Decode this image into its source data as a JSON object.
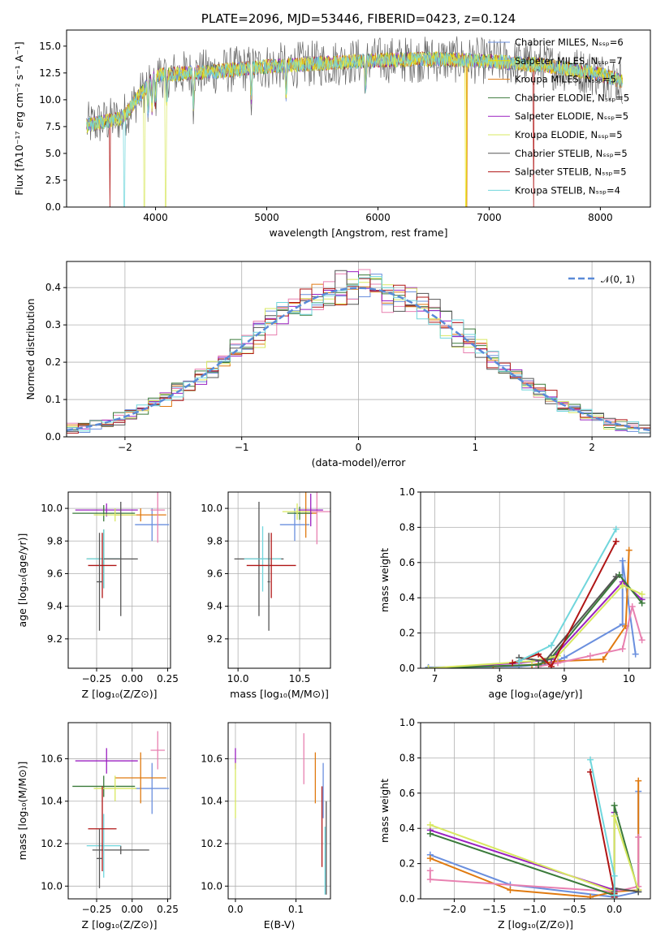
{
  "colors": {
    "Chabrier MILES": "#6a8fde",
    "Salpeter MILES": "#e8e000",
    "Kroupa MILES": "#e07a10",
    "Chabrier ELODIE": "#3a7a3a",
    "Salpeter ELODIE": "#9b20c0",
    "Kroupa ELODIE": "#d8e860",
    "Chabrier STELIB": "#555555",
    "Salpeter STELIB": "#b01515",
    "Kroupa STELIB": "#70d6dc",
    "extra_pink": "#e880b0",
    "normal_curve": "#5a8ad8"
  },
  "chart_data": [
    {
      "id": "spectrum",
      "type": "line",
      "title": "PLATE=2096, MJD=53446, FIBERID=0423, z=0.124",
      "xlabel": "wavelength [Angstrom, rest frame]",
      "ylabel": "Flux [fλ10⁻¹⁷ erg cm⁻² s⁻¹ A⁻¹]",
      "xlim": [
        3200,
        8450
      ],
      "ylim": [
        0,
        16.5
      ],
      "xticks": [
        4000,
        5000,
        6000,
        7000,
        8000
      ],
      "yticks": [
        0.0,
        2.5,
        5.0,
        7.5,
        10.0,
        12.5,
        15.0
      ],
      "legend_position": "right",
      "grid": false,
      "series": [
        {
          "name": "Chabrier MILES, Nₛₛₚ=6"
        },
        {
          "name": "Salpeter MILES, Nₛₛₚ=7"
        },
        {
          "name": "Kroupa MILES, Nₛₛₚ=5"
        },
        {
          "name": "Chabrier ELODIE, Nₛₛₚ=5"
        },
        {
          "name": "Salpeter ELODIE, Nₛₛₚ=5"
        },
        {
          "name": "Kroupa ELODIE, Nₛₛₚ=5"
        },
        {
          "name": "Chabrier STELIB, Nₛₛₚ=5"
        },
        {
          "name": "Salpeter STELIB, Nₛₛₚ=5"
        },
        {
          "name": "Kroupa STELIB, Nₛₛₚ=4"
        }
      ],
      "continuum": {
        "x": [
          3380,
          3700,
          4000,
          4500,
          5000,
          5500,
          6000,
          6500,
          7000,
          7500,
          8000,
          8200
        ],
        "y": [
          7.6,
          8.3,
          12.3,
          12.6,
          13.1,
          13.4,
          13.7,
          13.8,
          13.6,
          13.2,
          12.4,
          11.7
        ]
      }
    },
    {
      "id": "residuals",
      "type": "histogram",
      "xlabel": "(data-model)/error",
      "ylabel": "Normed distribution",
      "xlim": [
        -2.5,
        2.5
      ],
      "ylim": [
        0,
        0.47
      ],
      "xticks": [
        -2,
        -1,
        0,
        1,
        2
      ],
      "yticks": [
        0.0,
        0.1,
        0.2,
        0.3,
        0.4
      ],
      "grid": true,
      "legend_position": "top-right",
      "legend": "𝒩(0, 1)",
      "bin_width": 0.1
    },
    {
      "id": "age_vs_Z",
      "type": "errorbar",
      "xlabel": "Z [log₁₀(Z/Z⊙)]",
      "ylabel": "age  [log₁₀(age/yr)]",
      "xlim": [
        -0.45,
        0.27
      ],
      "ylim": [
        9.02,
        10.1
      ],
      "xticks": [
        -0.25,
        0.0,
        0.25
      ],
      "yticks": [
        9.2,
        9.4,
        9.6,
        9.8,
        10.0
      ],
      "grid": true,
      "points": [
        {
          "x": 0.14,
          "y": 9.9,
          "xerr": 0.12,
          "yerr": 0.1,
          "color": "#6a8fde"
        },
        {
          "x": 0.06,
          "y": 9.96,
          "xerr": 0.18,
          "yerr": 0.04,
          "color": "#e07a10"
        },
        {
          "x": 0.18,
          "y": 9.99,
          "xerr": 0.05,
          "yerr": 0.2,
          "color": "#e880b0"
        },
        {
          "x": -0.18,
          "y": 9.99,
          "xerr": 0.22,
          "yerr": 0.04,
          "color": "#9b20c0"
        },
        {
          "x": -0.2,
          "y": 9.97,
          "xerr": 0.22,
          "yerr": 0.05,
          "color": "#3a7a3a"
        },
        {
          "x": -0.12,
          "y": 9.96,
          "xerr": 0.15,
          "yerr": 0.04,
          "color": "#d8e860"
        },
        {
          "x": -0.2,
          "y": 9.69,
          "xerr": 0.12,
          "yerr": 0.18,
          "color": "#3a7a3a"
        },
        {
          "x": -0.2,
          "y": 9.69,
          "xerr": 0.12,
          "yerr": 0.18,
          "color": "#70d6dc"
        },
        {
          "x": -0.08,
          "y": 9.69,
          "xerr": 0.12,
          "yerr": 0.35,
          "color": "#555555"
        },
        {
          "x": -0.21,
          "y": 9.65,
          "xerr": 0.1,
          "yerr": 0.2,
          "color": "#b01515"
        },
        {
          "x": -0.23,
          "y": 9.55,
          "xerr": 0.02,
          "yerr": 0.3,
          "color": "#555555"
        }
      ]
    },
    {
      "id": "age_vs_mass",
      "type": "errorbar",
      "xlabel": "mass [log₁₀(M/M⊙)]",
      "xlim": [
        9.92,
        10.75
      ],
      "ylim": [
        9.02,
        10.1
      ],
      "xticks": [
        10.0,
        10.5
      ],
      "yticks": [
        9.2,
        9.4,
        9.6,
        9.8,
        10.0
      ],
      "grid": true,
      "points": [
        {
          "x": 10.46,
          "y": 9.9,
          "xerr": 0.12,
          "yerr": 0.1,
          "color": "#6a8fde"
        },
        {
          "x": 10.55,
          "y": 9.97,
          "xerr": 0.09,
          "yerr": 0.15,
          "color": "#e07a10"
        },
        {
          "x": 10.64,
          "y": 9.98,
          "xerr": 0.12,
          "yerr": 0.2,
          "color": "#e880b0"
        },
        {
          "x": 10.5,
          "y": 9.97,
          "xerr": 0.1,
          "yerr": 0.04,
          "color": "#3a7a3a"
        },
        {
          "x": 10.48,
          "y": 9.98,
          "xerr": 0.12,
          "yerr": 0.05,
          "color": "#d8e860"
        },
        {
          "x": 10.59,
          "y": 9.99,
          "xerr": 0.1,
          "yerr": 0.1,
          "color": "#9b20c0"
        },
        {
          "x": 10.17,
          "y": 9.69,
          "xerr": 0.2,
          "yerr": 0.35,
          "color": "#555555"
        },
        {
          "x": 10.2,
          "y": 9.69,
          "xerr": 0.15,
          "yerr": 0.2,
          "color": "#70d6dc"
        },
        {
          "x": 10.27,
          "y": 9.65,
          "xerr": 0.2,
          "yerr": 0.2,
          "color": "#b01515"
        },
        {
          "x": 10.25,
          "y": 9.55,
          "xerr": 0.01,
          "yerr": 0.3,
          "color": "#555555"
        }
      ]
    },
    {
      "id": "weight_vs_age",
      "type": "line",
      "xlabel": "age  [log₁₀(age/yr)]",
      "ylabel": "mass weight",
      "xlim": [
        6.78,
        10.33
      ],
      "ylim": [
        0,
        1
      ],
      "xticks": [
        7,
        8,
        9,
        10
      ],
      "yticks": [
        0.0,
        0.2,
        0.4,
        0.6,
        0.8,
        1.0
      ],
      "grid": true,
      "series": [
        {
          "color": "#6a8fde",
          "x": [
            6.9,
            8.3,
            8.6,
            8.8,
            9.0,
            9.9,
            9.9,
            10.1
          ],
          "y": [
            0.005,
            0.01,
            0.02,
            0.03,
            0.06,
            0.25,
            0.61,
            0.08
          ]
        },
        {
          "color": "#e07a10",
          "x": [
            7.9,
            8.5,
            8.9,
            9.6,
            9.95,
            10.0
          ],
          "y": [
            0.01,
            0.02,
            0.04,
            0.05,
            0.24,
            0.67
          ]
        },
        {
          "color": "#e880b0",
          "x": [
            8.6,
            8.9,
            9.4,
            9.9,
            10.05,
            10.2
          ],
          "y": [
            0.01,
            0.03,
            0.07,
            0.11,
            0.35,
            0.16
          ]
        },
        {
          "color": "#9b20c0",
          "x": [
            6.9,
            8.3,
            8.8,
            9.9,
            10.2
          ],
          "y": [
            0.0,
            0.03,
            0.05,
            0.49,
            0.39
          ]
        },
        {
          "color": "#3a7a3a",
          "x": [
            6.9,
            8.6,
            8.8,
            9.85,
            10.2
          ],
          "y": [
            0.0,
            0.02,
            0.06,
            0.53,
            0.37
          ]
        },
        {
          "color": "#d8e860",
          "x": [
            6.9,
            8.5,
            8.9,
            9.9,
            10.2
          ],
          "y": [
            0.0,
            0.04,
            0.07,
            0.47,
            0.42
          ]
        },
        {
          "color": "#555555",
          "x": [
            8.3,
            8.7,
            9.8
          ],
          "y": [
            0.06,
            0.04,
            0.52
          ]
        },
        {
          "color": "#b01515",
          "x": [
            8.2,
            8.6,
            8.8,
            9.8
          ],
          "y": [
            0.03,
            0.08,
            0.01,
            0.72
          ]
        },
        {
          "color": "#70d6dc",
          "x": [
            8.3,
            8.8,
            9.8
          ],
          "y": [
            0.04,
            0.13,
            0.79
          ]
        }
      ]
    },
    {
      "id": "mass_vs_Z",
      "type": "errorbar",
      "xlabel": "Z [log₁₀(Z/Z⊙)]",
      "ylabel": "mass [log₁₀(M/M⊙)]",
      "xlim": [
        -0.45,
        0.27
      ],
      "ylim": [
        9.94,
        10.77
      ],
      "xticks": [
        -0.25,
        0.0,
        0.25
      ],
      "yticks": [
        10.0,
        10.2,
        10.4,
        10.6
      ],
      "grid": true,
      "points": [
        {
          "x": 0.14,
          "y": 10.46,
          "xerr": 0.12,
          "yerr": 0.12,
          "color": "#6a8fde"
        },
        {
          "x": 0.06,
          "y": 10.51,
          "xerr": 0.18,
          "yerr": 0.12,
          "color": "#e07a10"
        },
        {
          "x": 0.18,
          "y": 10.64,
          "xerr": 0.05,
          "yerr": 0.09,
          "color": "#e880b0"
        },
        {
          "x": -0.18,
          "y": 10.59,
          "xerr": 0.22,
          "yerr": 0.06,
          "color": "#9b20c0"
        },
        {
          "x": -0.2,
          "y": 10.47,
          "xerr": 0.22,
          "yerr": 0.05,
          "color": "#3a7a3a"
        },
        {
          "x": -0.12,
          "y": 10.46,
          "xerr": 0.15,
          "yerr": 0.06,
          "color": "#d8e860"
        },
        {
          "x": -0.08,
          "y": 10.17,
          "xerr": 0.2,
          "yerr": 0.02,
          "color": "#555555"
        },
        {
          "x": -0.2,
          "y": 10.19,
          "xerr": 0.12,
          "yerr": 0.15,
          "color": "#70d6dc"
        },
        {
          "x": -0.21,
          "y": 10.27,
          "xerr": 0.1,
          "yerr": 0.2,
          "color": "#b01515"
        },
        {
          "x": -0.23,
          "y": 10.13,
          "xerr": 0.02,
          "yerr": 0.14,
          "color": "#555555"
        }
      ]
    },
    {
      "id": "mass_vs_ebv",
      "type": "errorbar",
      "xlabel": "E(B-V)",
      "xlim": [
        -0.012,
        0.157
      ],
      "ylim": [
        9.94,
        10.77
      ],
      "xticks": [
        0.0,
        0.1
      ],
      "yticks": [
        10.0,
        10.2,
        10.4,
        10.6
      ],
      "grid": true,
      "points": [
        {
          "x": 0.0,
          "y": 10.6,
          "xerr": 0,
          "yerr": 0.05,
          "color": "#9b20c0"
        },
        {
          "x": 0.0,
          "y": 10.45,
          "xerr": 0,
          "yerr": 0.13,
          "color": "#d8e860"
        },
        {
          "x": 0.113,
          "y": 10.6,
          "xerr": 0,
          "yerr": 0.12,
          "color": "#e880b0"
        },
        {
          "x": 0.132,
          "y": 10.51,
          "xerr": 0,
          "yerr": 0.12,
          "color": "#e07a10"
        },
        {
          "x": 0.143,
          "y": 10.28,
          "xerr": 0,
          "yerr": 0.19,
          "color": "#b01515"
        },
        {
          "x": 0.145,
          "y": 10.45,
          "xerr": 0,
          "yerr": 0.13,
          "color": "#6a8fde"
        },
        {
          "x": 0.148,
          "y": 10.12,
          "xerr": 0,
          "yerr": 0.16,
          "color": "#70d6dc"
        },
        {
          "x": 0.15,
          "y": 10.18,
          "xerr": 0,
          "yerr": 0.22,
          "color": "#555555"
        }
      ]
    },
    {
      "id": "weight_vs_Z",
      "type": "line",
      "xlabel": "Z [log₁₀(Z/Z⊙)]",
      "ylabel": "mass weight",
      "xlim": [
        -2.42,
        0.45
      ],
      "ylim": [
        0,
        1
      ],
      "xticks": [
        -2.0,
        -1.5,
        -1.0,
        -0.5,
        0.0
      ],
      "yticks": [
        0.0,
        0.2,
        0.4,
        0.6,
        0.8,
        1.0
      ],
      "grid": true,
      "series": [
        {
          "color": "#6a8fde",
          "x": [
            -2.3,
            -1.3,
            0.0,
            0.3,
            0.3
          ],
          "y": [
            0.25,
            0.08,
            0.01,
            0.04,
            0.61
          ]
        },
        {
          "color": "#e07a10",
          "x": [
            -2.3,
            -1.3,
            -0.3,
            0.0,
            0.3,
            0.3
          ],
          "y": [
            0.23,
            0.05,
            0.01,
            0.04,
            0.05,
            0.67
          ]
        },
        {
          "color": "#e880b0",
          "x": [
            -2.3,
            -2.3,
            0.0,
            0.3,
            0.3
          ],
          "y": [
            0.16,
            0.11,
            0.04,
            0.07,
            0.35
          ]
        },
        {
          "color": "#9b20c0",
          "x": [
            -2.3,
            0.0,
            0.0
          ],
          "y": [
            0.39,
            0.05,
            0.49
          ]
        },
        {
          "color": "#3a7a3a",
          "x": [
            -2.3,
            0.0,
            0.0,
            0.3
          ],
          "y": [
            0.37,
            0.02,
            0.53,
            0.04
          ]
        },
        {
          "color": "#d8e860",
          "x": [
            -2.3,
            0.0,
            0.0,
            0.3
          ],
          "y": [
            0.42,
            0.04,
            0.47,
            0.05
          ]
        },
        {
          "color": "#555555",
          "x": [
            0.0,
            0.0,
            0.3
          ],
          "y": [
            0.04,
            0.06,
            0.04
          ]
        },
        {
          "color": "#b01515",
          "x": [
            -0.3,
            0.0,
            0.0
          ],
          "y": [
            0.72,
            0.03,
            0.01
          ]
        },
        {
          "color": "#70d6dc",
          "x": [
            -0.3,
            0.0,
            0.0
          ],
          "y": [
            0.79,
            0.13,
            0.02
          ]
        }
      ]
    }
  ]
}
